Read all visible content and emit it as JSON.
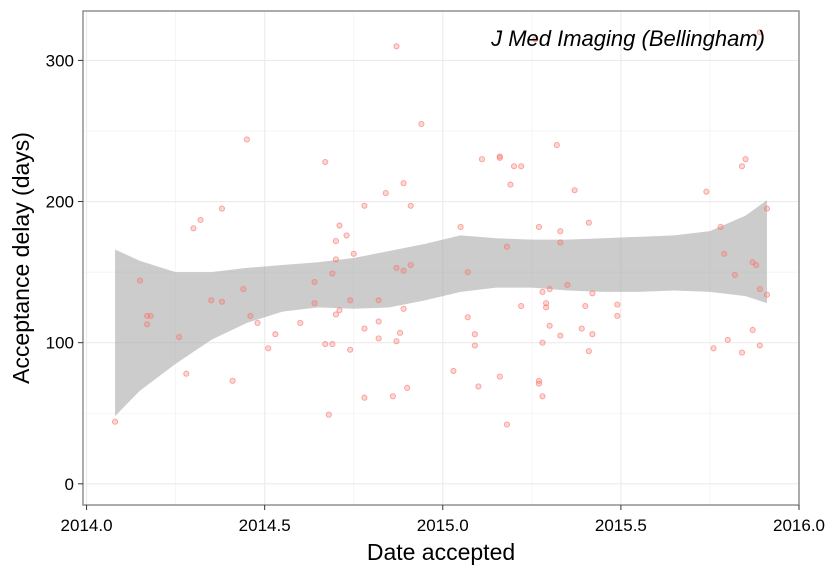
{
  "chart_data": {
    "type": "scatter",
    "title": "",
    "annotation": "J Med Imaging (Bellingham)",
    "xlabel": "Date accepted",
    "ylabel": "Acceptance delay (days)",
    "xlim": [
      2013.99,
      2016.0
    ],
    "ylim": [
      -15,
      335
    ],
    "x_ticks": [
      "2014.0",
      "2014.5",
      "2015.0",
      "2015.5",
      "2016.0"
    ],
    "y_ticks": [
      "0",
      "100",
      "200",
      "300"
    ],
    "grid": true,
    "point_color": "#F8766D",
    "band_color": "#999999",
    "points": [
      [
        2014.08,
        44
      ],
      [
        2014.15,
        144
      ],
      [
        2014.17,
        119
      ],
      [
        2014.17,
        113
      ],
      [
        2014.18,
        119
      ],
      [
        2014.26,
        104
      ],
      [
        2014.28,
        78
      ],
      [
        2014.3,
        181
      ],
      [
        2014.32,
        187
      ],
      [
        2014.35,
        130
      ],
      [
        2014.38,
        195
      ],
      [
        2014.38,
        129
      ],
      [
        2014.41,
        73
      ],
      [
        2014.44,
        138
      ],
      [
        2014.45,
        244
      ],
      [
        2014.46,
        119
      ],
      [
        2014.48,
        114
      ],
      [
        2014.51,
        96
      ],
      [
        2014.53,
        106
      ],
      [
        2014.6,
        114
      ],
      [
        2014.64,
        143
      ],
      [
        2014.64,
        128
      ],
      [
        2014.67,
        228
      ],
      [
        2014.67,
        99
      ],
      [
        2014.68,
        49
      ],
      [
        2014.69,
        99
      ],
      [
        2014.69,
        149
      ],
      [
        2014.7,
        120
      ],
      [
        2014.7,
        159
      ],
      [
        2014.7,
        172
      ],
      [
        2014.71,
        183
      ],
      [
        2014.71,
        123
      ],
      [
        2014.73,
        176
      ],
      [
        2014.74,
        95
      ],
      [
        2014.74,
        130
      ],
      [
        2014.75,
        163
      ],
      [
        2014.78,
        197
      ],
      [
        2014.78,
        110
      ],
      [
        2014.78,
        61
      ],
      [
        2014.82,
        103
      ],
      [
        2014.82,
        115
      ],
      [
        2014.82,
        130
      ],
      [
        2014.84,
        206
      ],
      [
        2014.86,
        62
      ],
      [
        2014.87,
        153
      ],
      [
        2014.87,
        101
      ],
      [
        2014.87,
        310
      ],
      [
        2014.88,
        107
      ],
      [
        2014.89,
        213
      ],
      [
        2014.89,
        151
      ],
      [
        2014.89,
        124
      ],
      [
        2014.9,
        68
      ],
      [
        2014.91,
        197
      ],
      [
        2014.91,
        155
      ],
      [
        2014.94,
        255
      ],
      [
        2015.03,
        80
      ],
      [
        2015.05,
        182
      ],
      [
        2015.07,
        150
      ],
      [
        2015.07,
        118
      ],
      [
        2015.09,
        98
      ],
      [
        2015.09,
        106
      ],
      [
        2015.1,
        69
      ],
      [
        2015.11,
        230
      ],
      [
        2015.16,
        76
      ],
      [
        2015.16,
        231
      ],
      [
        2015.16,
        232
      ],
      [
        2015.18,
        168
      ],
      [
        2015.18,
        42
      ],
      [
        2015.19,
        212
      ],
      [
        2015.2,
        225
      ],
      [
        2015.22,
        225
      ],
      [
        2015.22,
        126
      ],
      [
        2015.26,
        315
      ],
      [
        2015.27,
        182
      ],
      [
        2015.27,
        73
      ],
      [
        2015.27,
        71
      ],
      [
        2015.28,
        62
      ],
      [
        2015.28,
        136
      ],
      [
        2015.28,
        100
      ],
      [
        2015.29,
        128
      ],
      [
        2015.29,
        125
      ],
      [
        2015.3,
        112
      ],
      [
        2015.3,
        138
      ],
      [
        2015.32,
        240
      ],
      [
        2015.33,
        179
      ],
      [
        2015.33,
        105
      ],
      [
        2015.33,
        171
      ],
      [
        2015.35,
        141
      ],
      [
        2015.37,
        208
      ],
      [
        2015.39,
        110
      ],
      [
        2015.4,
        126
      ],
      [
        2015.41,
        94
      ],
      [
        2015.41,
        185
      ],
      [
        2015.42,
        135
      ],
      [
        2015.42,
        106
      ],
      [
        2015.49,
        127
      ],
      [
        2015.49,
        119
      ],
      [
        2015.74,
        207
      ],
      [
        2015.76,
        96
      ],
      [
        2015.78,
        182
      ],
      [
        2015.79,
        163
      ],
      [
        2015.8,
        102
      ],
      [
        2015.82,
        148
      ],
      [
        2015.84,
        225
      ],
      [
        2015.84,
        93
      ],
      [
        2015.85,
        230
      ],
      [
        2015.87,
        157
      ],
      [
        2015.87,
        109
      ],
      [
        2015.88,
        155
      ],
      [
        2015.89,
        98
      ],
      [
        2015.89,
        138
      ],
      [
        2015.89,
        320
      ],
      [
        2015.91,
        195
      ],
      [
        2015.91,
        134
      ]
    ],
    "band": {
      "x": [
        2014.08,
        2014.15,
        2014.25,
        2014.35,
        2014.45,
        2014.55,
        2014.65,
        2014.75,
        2014.85,
        2014.95,
        2015.05,
        2015.15,
        2015.25,
        2015.35,
        2015.45,
        2015.55,
        2015.65,
        2015.75,
        2015.85,
        2015.91
      ],
      "upper": [
        166,
        158,
        150,
        150,
        153,
        155,
        157,
        160,
        165,
        170,
        176,
        174,
        173,
        173,
        174,
        175,
        176,
        179,
        190,
        201
      ],
      "lower": [
        48,
        66,
        85,
        102,
        114,
        122,
        125,
        124,
        125,
        130,
        136,
        139,
        139,
        137,
        136,
        136,
        137,
        136,
        133,
        128
      ]
    }
  }
}
